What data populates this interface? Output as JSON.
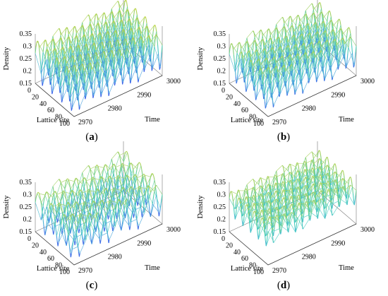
{
  "figure": {
    "panels": [
      {
        "caption_open": "(",
        "caption_letter": "a",
        "caption_close": ")"
      },
      {
        "caption_open": "(",
        "caption_letter": "b",
        "caption_close": ")"
      },
      {
        "caption_open": "(",
        "caption_letter": "c",
        "caption_close": ")"
      },
      {
        "caption_open": "(",
        "caption_letter": "d",
        "caption_close": ")"
      }
    ]
  },
  "chart_data": [
    {
      "type": "surface-3d",
      "panel": "a",
      "xlabel": "Lattice site",
      "ylabel": "Time",
      "zlabel": "Density",
      "x_ticks": [
        "20",
        "40",
        "60",
        "80",
        "100"
      ],
      "y_ticks": [
        "2970",
        "2980",
        "2990",
        "3000"
      ],
      "z_ticks": [
        "0.15",
        "0.2",
        "0.25",
        "0.3",
        "0.35"
      ],
      "x_range": [
        0,
        100
      ],
      "y_range": [
        2970,
        3000
      ],
      "z_range": [
        0.15,
        0.35
      ],
      "colormap": [
        "#3030f0",
        "#4aa0e0",
        "#48d0c0",
        "#90d070",
        "#e8d820"
      ],
      "pattern": {
        "description": "density waves",
        "n_waves": 4,
        "min": 0.16,
        "max": 0.33
      }
    },
    {
      "type": "surface-3d",
      "panel": "b",
      "xlabel": "Lattice site",
      "ylabel": "Time",
      "zlabel": "Density",
      "x_ticks": [
        "20",
        "40",
        "60",
        "80",
        "100"
      ],
      "y_ticks": [
        "2970",
        "2980",
        "2990",
        "3000"
      ],
      "z_ticks": [
        "0.15",
        "0.2",
        "0.25",
        "0.3",
        "0.35"
      ],
      "x_range": [
        0,
        100
      ],
      "y_range": [
        2970,
        3000
      ],
      "z_range": [
        0.15,
        0.35
      ],
      "colormap": [
        "#3030f0",
        "#4aa0e0",
        "#48d0c0",
        "#90d070",
        "#e8d820"
      ],
      "pattern": {
        "n_waves": 4,
        "min": 0.17,
        "max": 0.32
      }
    },
    {
      "type": "surface-3d",
      "panel": "c",
      "xlabel": "Lattice site",
      "ylabel": "Time",
      "zlabel": "Density",
      "x_ticks": [
        "20",
        "40",
        "60",
        "80",
        "100"
      ],
      "y_ticks": [
        "2970",
        "2980",
        "2990",
        "3000"
      ],
      "z_ticks": [
        "0.15",
        "0.2",
        "0.25",
        "0.3",
        "0.35"
      ],
      "x_range": [
        0,
        100
      ],
      "y_range": [
        2970,
        3000
      ],
      "z_range": [
        0.15,
        0.35
      ],
      "colormap": [
        "#3030f0",
        "#4aa0e0",
        "#48d0c0",
        "#90d070",
        "#e8d820"
      ],
      "pattern": {
        "n_waves": 3,
        "min": 0.17,
        "max": 0.32
      }
    },
    {
      "type": "surface-3d",
      "panel": "d",
      "xlabel": "Lattice site",
      "ylabel": "Time",
      "zlabel": "Density",
      "x_ticks": [
        "20",
        "40",
        "60",
        "80",
        "100"
      ],
      "y_ticks": [
        "2970",
        "2980",
        "2990",
        "3000"
      ],
      "z_ticks": [
        "0.15",
        "0.2",
        "0.25",
        "0.3",
        "0.35"
      ],
      "x_range": [
        0,
        100
      ],
      "y_range": [
        2970,
        3000
      ],
      "z_range": [
        0.15,
        0.35
      ],
      "colormap": [
        "#3030f0",
        "#4aa0e0",
        "#48d0c0",
        "#90d070",
        "#e8d820"
      ],
      "pattern": {
        "n_waves": 5,
        "min": 0.22,
        "max": 0.32
      }
    }
  ]
}
